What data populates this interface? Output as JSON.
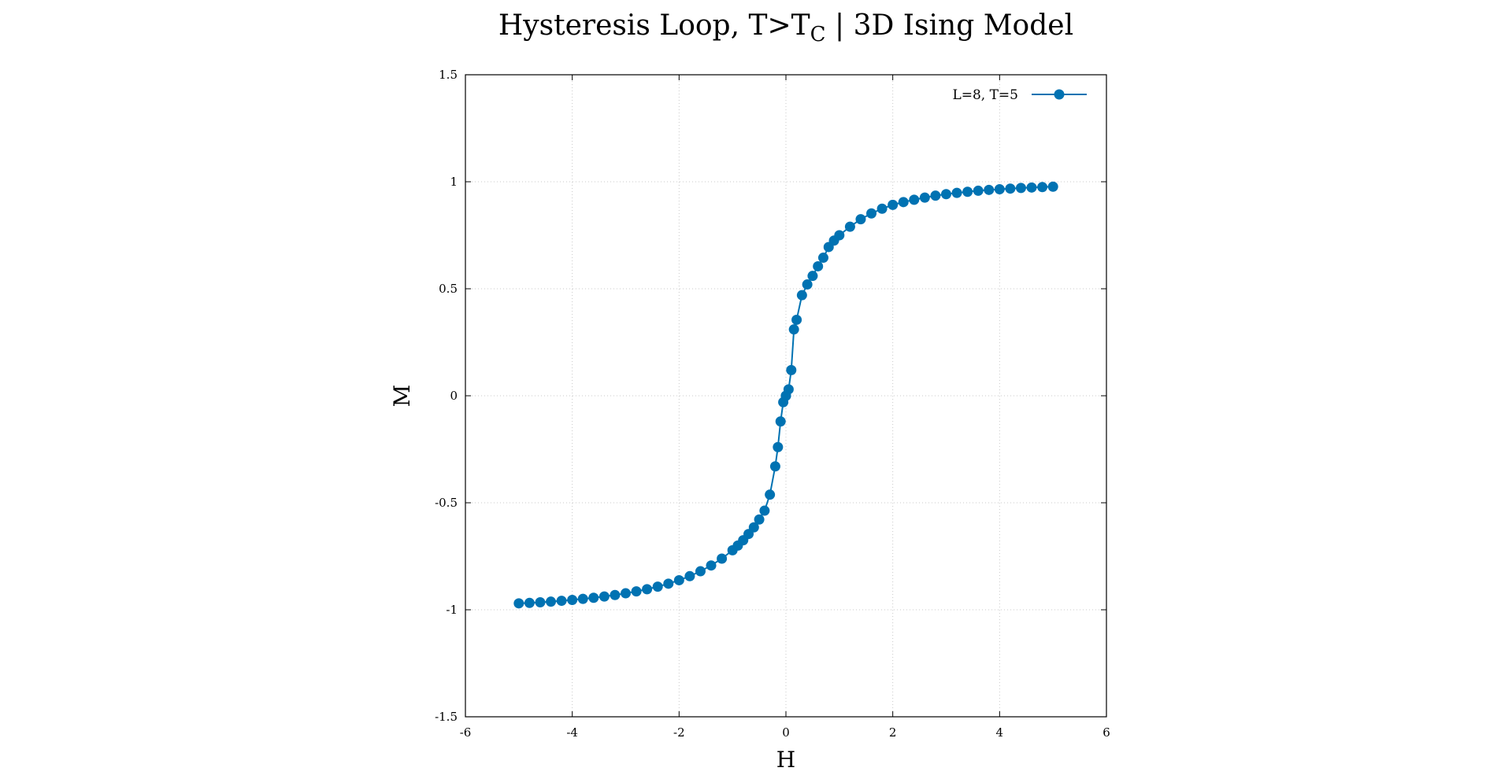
{
  "chart_data": {
    "type": "line",
    "title": {
      "main": "Hysteresis Loop, T>T",
      "subscript": "C",
      "rest": " | 3D Ising Model"
    },
    "xlabel": "H",
    "ylabel": "M",
    "xlim": [
      -6,
      6
    ],
    "ylim": [
      -1.5,
      1.5
    ],
    "xticks": [
      -6,
      -4,
      -2,
      0,
      2,
      4,
      6
    ],
    "yticks": [
      -1.5,
      -1,
      -0.5,
      0,
      0.5,
      1,
      1.5
    ],
    "xtick_labels": [
      "-6",
      "-4",
      "-2",
      "0",
      "2",
      "4",
      "6"
    ],
    "ytick_labels": [
      "-1.5",
      "-1",
      "-0.5",
      "0",
      "0.5",
      "1",
      "1.5"
    ],
    "grid": true,
    "legend_position": "top-right",
    "series": [
      {
        "name": "L=8, T=5",
        "color": "#0072b2",
        "marker": "circle",
        "x": [
          -5.0,
          -4.8,
          -4.6,
          -4.4,
          -4.2,
          -4.0,
          -3.8,
          -3.6,
          -3.4,
          -3.2,
          -3.0,
          -2.8,
          -2.6,
          -2.4,
          -2.2,
          -2.0,
          -1.8,
          -1.6,
          -1.4,
          -1.2,
          -1.0,
          -0.9,
          -0.8,
          -0.7,
          -0.6,
          -0.5,
          -0.4,
          -0.3,
          -0.2,
          -0.15,
          -0.1,
          -0.05,
          0.0,
          0.0,
          0.05,
          0.1,
          0.15,
          0.2,
          0.3,
          0.4,
          0.5,
          0.6,
          0.7,
          0.8,
          0.9,
          1.0,
          1.2,
          1.4,
          1.6,
          1.8,
          2.0,
          2.2,
          2.4,
          2.6,
          2.8,
          3.0,
          3.2,
          3.4,
          3.6,
          3.8,
          4.0,
          4.2,
          4.4,
          4.6,
          4.8,
          5.0
        ],
        "y": [
          -0.97,
          -0.968,
          -0.965,
          -0.962,
          -0.958,
          -0.954,
          -0.949,
          -0.944,
          -0.938,
          -0.931,
          -0.923,
          -0.914,
          -0.904,
          -0.892,
          -0.878,
          -0.862,
          -0.843,
          -0.82,
          -0.793,
          -0.761,
          -0.722,
          -0.7,
          -0.675,
          -0.646,
          -0.615,
          -0.578,
          -0.537,
          -0.462,
          -0.33,
          -0.24,
          -0.12,
          -0.03,
          0.0,
          0.0,
          0.03,
          0.12,
          0.31,
          0.355,
          0.47,
          0.52,
          0.56,
          0.605,
          0.645,
          0.695,
          0.725,
          0.75,
          0.79,
          0.825,
          0.852,
          0.874,
          0.892,
          0.905,
          0.916,
          0.926,
          0.935,
          0.942,
          0.948,
          0.953,
          0.958,
          0.962,
          0.965,
          0.968,
          0.971,
          0.973,
          0.975,
          0.977
        ]
      }
    ]
  }
}
